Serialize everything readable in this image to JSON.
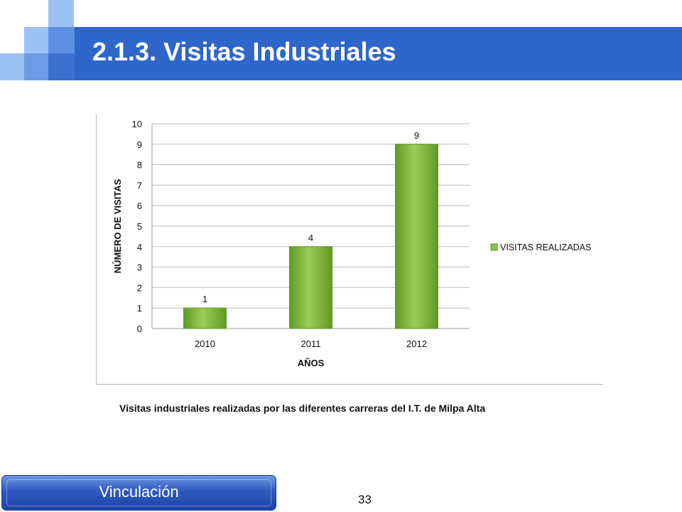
{
  "slide": {
    "title": "2.1.3. Visitas Industriales",
    "caption": "Visitas industriales realizadas por las diferentes carreras del I.T. de Milpa Alta",
    "footer_label": "Vinculación",
    "page_number": "33"
  },
  "colors": {
    "title_bar": "#2f66c9",
    "bar_fill": "#8bc34a",
    "bar_dark": "#5f9a22",
    "grid": "#bdbdbd"
  },
  "chart_data": {
    "type": "bar",
    "categories": [
      "2010",
      "2011",
      "2012"
    ],
    "series": [
      {
        "name": "VISITAS REALIZADAS",
        "values": [
          1,
          4,
          9
        ]
      }
    ],
    "xlabel": "AÑOS",
    "ylabel": "NÚMERO DE VISITAS",
    "ylim": [
      0,
      10
    ],
    "yticks": [
      0,
      1,
      2,
      3,
      4,
      5,
      6,
      7,
      8,
      9,
      10
    ],
    "data_labels": true,
    "grid": true,
    "legend_position": "right"
  }
}
